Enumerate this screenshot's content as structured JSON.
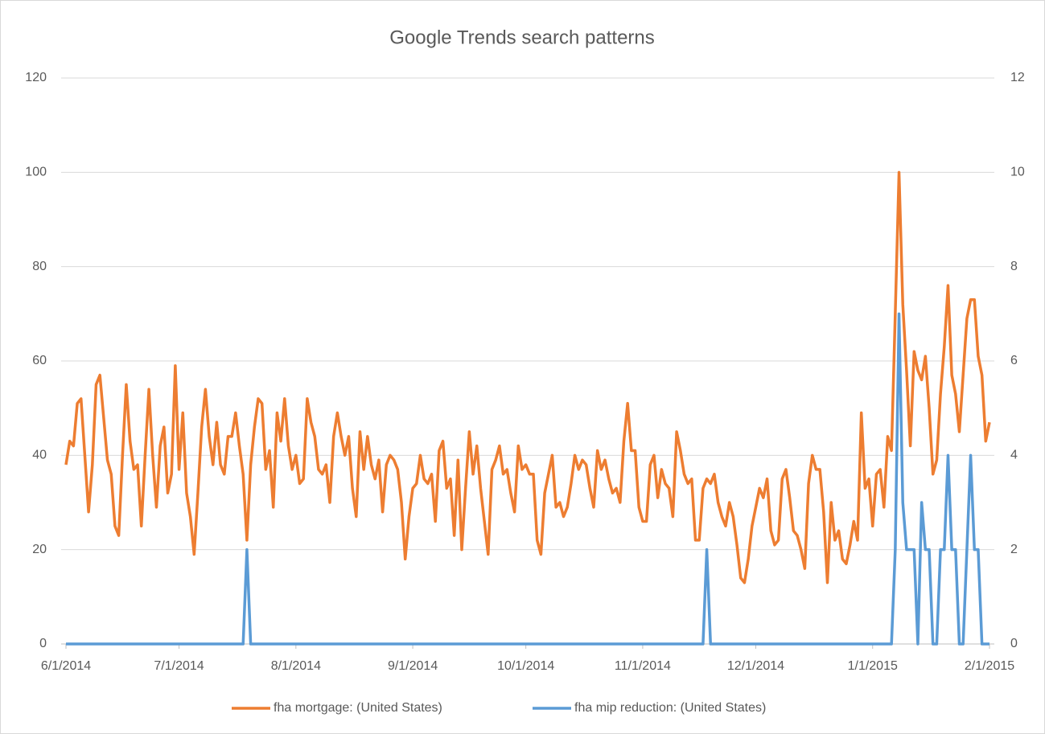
{
  "chart_data": {
    "type": "line",
    "title": "Google Trends search patterns",
    "x": [
      "2014-06-01",
      "2014-06-02",
      "2014-06-03",
      "2014-06-04",
      "2014-06-05",
      "2014-06-06",
      "2014-06-07",
      "2014-06-08",
      "2014-06-09",
      "2014-06-10",
      "2014-06-11",
      "2014-06-12",
      "2014-06-13",
      "2014-06-14",
      "2014-06-15",
      "2014-06-16",
      "2014-06-17",
      "2014-06-18",
      "2014-06-19",
      "2014-06-20",
      "2014-06-21",
      "2014-06-22",
      "2014-06-23",
      "2014-06-24",
      "2014-06-25",
      "2014-06-26",
      "2014-06-27",
      "2014-06-28",
      "2014-06-29",
      "2014-06-30",
      "2014-07-01",
      "2014-07-02",
      "2014-07-03",
      "2014-07-04",
      "2014-07-05",
      "2014-07-06",
      "2014-07-07",
      "2014-07-08",
      "2014-07-09",
      "2014-07-10",
      "2014-07-11",
      "2014-07-12",
      "2014-07-13",
      "2014-07-14",
      "2014-07-15",
      "2014-07-16",
      "2014-07-17",
      "2014-07-18",
      "2014-07-19",
      "2014-07-20",
      "2014-07-21",
      "2014-07-22",
      "2014-07-23",
      "2014-07-24",
      "2014-07-25",
      "2014-07-26",
      "2014-07-27",
      "2014-07-28",
      "2014-07-29",
      "2014-07-30",
      "2014-07-31",
      "2014-08-01",
      "2014-08-02",
      "2014-08-03",
      "2014-08-04",
      "2014-08-05",
      "2014-08-06",
      "2014-08-07",
      "2014-08-08",
      "2014-08-09",
      "2014-08-10",
      "2014-08-11",
      "2014-08-12",
      "2014-08-13",
      "2014-08-14",
      "2014-08-15",
      "2014-08-16",
      "2014-08-17",
      "2014-08-18",
      "2014-08-19",
      "2014-08-20",
      "2014-08-21",
      "2014-08-22",
      "2014-08-23",
      "2014-08-24",
      "2014-08-25",
      "2014-08-26",
      "2014-08-27",
      "2014-08-28",
      "2014-08-29",
      "2014-08-30",
      "2014-08-31",
      "2014-09-01",
      "2014-09-02",
      "2014-09-03",
      "2014-09-04",
      "2014-09-05",
      "2014-09-06",
      "2014-09-07",
      "2014-09-08",
      "2014-09-09",
      "2014-09-10",
      "2014-09-11",
      "2014-09-12",
      "2014-09-13",
      "2014-09-14",
      "2014-09-15",
      "2014-09-16",
      "2014-09-17",
      "2014-09-18",
      "2014-09-19",
      "2014-09-20",
      "2014-09-21",
      "2014-09-22",
      "2014-09-23",
      "2014-09-24",
      "2014-09-25",
      "2014-09-26",
      "2014-09-27",
      "2014-09-28",
      "2014-09-29",
      "2014-09-30",
      "2014-10-01",
      "2014-10-02",
      "2014-10-03",
      "2014-10-04",
      "2014-10-05",
      "2014-10-06",
      "2014-10-07",
      "2014-10-08",
      "2014-10-09",
      "2014-10-10",
      "2014-10-11",
      "2014-10-12",
      "2014-10-13",
      "2014-10-14",
      "2014-10-15",
      "2014-10-16",
      "2014-10-17",
      "2014-10-18",
      "2014-10-19",
      "2014-10-20",
      "2014-10-21",
      "2014-10-22",
      "2014-10-23",
      "2014-10-24",
      "2014-10-25",
      "2014-10-26",
      "2014-10-27",
      "2014-10-28",
      "2014-10-29",
      "2014-10-30",
      "2014-10-31",
      "2014-11-01",
      "2014-11-02",
      "2014-11-03",
      "2014-11-04",
      "2014-11-05",
      "2014-11-06",
      "2014-11-07",
      "2014-11-08",
      "2014-11-09",
      "2014-11-10",
      "2014-11-11",
      "2014-11-12",
      "2014-11-13",
      "2014-11-14",
      "2014-11-15",
      "2014-11-16",
      "2014-11-17",
      "2014-11-18",
      "2014-11-19",
      "2014-11-20",
      "2014-11-21",
      "2014-11-22",
      "2014-11-23",
      "2014-11-24",
      "2014-11-25",
      "2014-11-26",
      "2014-11-27",
      "2014-11-28",
      "2014-11-29",
      "2014-11-30",
      "2014-12-01",
      "2014-12-02",
      "2014-12-03",
      "2014-12-04",
      "2014-12-05",
      "2014-12-06",
      "2014-12-07",
      "2014-12-08",
      "2014-12-09",
      "2014-12-10",
      "2014-12-11",
      "2014-12-12",
      "2014-12-13",
      "2014-12-14",
      "2014-12-15",
      "2014-12-16",
      "2014-12-17",
      "2014-12-18",
      "2014-12-19",
      "2014-12-20",
      "2014-12-21",
      "2014-12-22",
      "2014-12-23",
      "2014-12-24",
      "2014-12-25",
      "2014-12-26",
      "2014-12-27",
      "2014-12-28",
      "2014-12-29",
      "2014-12-30",
      "2014-12-31",
      "2015-01-01",
      "2015-01-02",
      "2015-01-03",
      "2015-01-04",
      "2015-01-05",
      "2015-01-06",
      "2015-01-07",
      "2015-01-08",
      "2015-01-09",
      "2015-01-10",
      "2015-01-11",
      "2015-01-12",
      "2015-01-13",
      "2015-01-14",
      "2015-01-15",
      "2015-01-16",
      "2015-01-17",
      "2015-01-18",
      "2015-01-19",
      "2015-01-20",
      "2015-01-21",
      "2015-01-22",
      "2015-01-23",
      "2015-01-24",
      "2015-01-25",
      "2015-01-26",
      "2015-01-27",
      "2015-01-28",
      "2015-01-29",
      "2015-01-30",
      "2015-01-31",
      "2015-02-01"
    ],
    "series": [
      {
        "name": "fha mortgage: (United States)",
        "color": "#ed7d31",
        "axis": "y",
        "values": [
          38,
          43,
          42,
          51,
          52,
          40,
          28,
          38,
          55,
          57,
          48,
          39,
          36,
          25,
          23,
          40,
          55,
          43,
          37,
          38,
          25,
          40,
          54,
          40,
          29,
          42,
          46,
          32,
          36,
          59,
          37,
          49,
          32,
          27,
          19,
          32,
          46,
          54,
          44,
          38,
          47,
          38,
          36,
          44,
          44,
          49,
          42,
          36,
          22,
          38,
          46,
          52,
          51,
          37,
          41,
          29,
          49,
          43,
          52,
          42,
          37,
          40,
          34,
          35,
          52,
          47,
          44,
          37,
          36,
          38,
          30,
          44,
          49,
          44,
          40,
          44,
          33,
          27,
          45,
          37,
          44,
          38,
          35,
          39,
          28,
          38,
          40,
          39,
          37,
          30,
          18,
          27,
          33,
          34,
          40,
          35,
          34,
          36,
          26,
          41,
          43,
          33,
          35,
          23,
          39,
          20,
          33,
          45,
          36,
          42,
          33,
          26,
          19,
          37,
          39,
          42,
          36,
          37,
          32,
          28,
          42,
          37,
          38,
          36,
          36,
          22,
          19,
          32,
          36,
          40,
          29,
          30,
          27,
          29,
          34,
          40,
          37,
          39,
          38,
          33,
          29,
          41,
          37,
          39,
          35,
          32,
          33,
          30,
          43,
          51,
          41,
          41,
          29,
          26,
          26,
          38,
          40,
          31,
          37,
          34,
          33,
          27,
          45,
          41,
          36,
          34,
          35,
          22,
          22,
          33,
          35,
          34,
          36,
          30,
          27,
          25,
          30,
          27,
          21,
          14,
          13,
          18,
          25,
          29,
          33,
          31,
          35,
          24,
          21,
          22,
          35,
          37,
          31,
          24,
          23,
          20,
          16,
          34,
          40,
          37,
          37,
          28,
          13,
          30,
          22,
          24,
          18,
          17,
          21,
          26,
          22,
          49,
          33,
          35,
          25,
          36,
          37,
          29,
          44,
          41,
          70,
          100,
          72,
          58,
          42,
          62,
          58,
          56,
          61,
          50,
          36,
          39,
          53,
          63,
          76,
          57,
          53,
          45,
          57,
          69,
          73,
          73,
          61,
          57,
          43,
          47
        ]
      },
      {
        "name": "fha mip reduction: (United States)",
        "color": "#5b9bd5",
        "axis": "y2",
        "values": [
          0,
          0,
          0,
          0,
          0,
          0,
          0,
          0,
          0,
          0,
          0,
          0,
          0,
          0,
          0,
          0,
          0,
          0,
          0,
          0,
          0,
          0,
          0,
          0,
          0,
          0,
          0,
          0,
          0,
          0,
          0,
          0,
          0,
          0,
          0,
          0,
          0,
          0,
          0,
          0,
          0,
          0,
          0,
          0,
          0,
          0,
          0,
          0,
          2,
          0,
          0,
          0,
          0,
          0,
          0,
          0,
          0,
          0,
          0,
          0,
          0,
          0,
          0,
          0,
          0,
          0,
          0,
          0,
          0,
          0,
          0,
          0,
          0,
          0,
          0,
          0,
          0,
          0,
          0,
          0,
          0,
          0,
          0,
          0,
          0,
          0,
          0,
          0,
          0,
          0,
          0,
          0,
          0,
          0,
          0,
          0,
          0,
          0,
          0,
          0,
          0,
          0,
          0,
          0,
          0,
          0,
          0,
          0,
          0,
          0,
          0,
          0,
          0,
          0,
          0,
          0,
          0,
          0,
          0,
          0,
          0,
          0,
          0,
          0,
          0,
          0,
          0,
          0,
          0,
          0,
          0,
          0,
          0,
          0,
          0,
          0,
          0,
          0,
          0,
          0,
          0,
          0,
          0,
          0,
          0,
          0,
          0,
          0,
          0,
          0,
          0,
          0,
          0,
          0,
          0,
          0,
          0,
          0,
          0,
          0,
          0,
          0,
          0,
          0,
          0,
          0,
          0,
          0,
          0,
          0,
          2,
          0,
          0,
          0,
          0,
          0,
          0,
          0,
          0,
          0,
          0,
          0,
          0,
          0,
          0,
          0,
          0,
          0,
          0,
          0,
          0,
          0,
          0,
          0,
          0,
          0,
          0,
          0,
          0,
          0,
          0,
          0,
          0,
          0,
          0,
          0,
          0,
          0,
          0,
          0,
          0,
          0,
          0,
          0,
          0,
          0,
          0,
          0,
          0,
          0,
          2,
          7,
          3,
          2,
          2,
          2,
          0,
          3,
          2,
          2,
          0,
          0,
          2,
          2,
          4,
          2,
          2,
          0,
          0,
          2,
          4,
          2,
          2,
          0,
          0,
          0
        ]
      }
    ],
    "xlim": [
      "2014-06-01",
      "2015-02-01"
    ],
    "xticks": [
      {
        "value": "2014-06-01",
        "label": "6/1/2014"
      },
      {
        "value": "2014-07-01",
        "label": "7/1/2014"
      },
      {
        "value": "2014-08-01",
        "label": "8/1/2014"
      },
      {
        "value": "2014-09-01",
        "label": "9/1/2014"
      },
      {
        "value": "2014-10-01",
        "label": "10/1/2014"
      },
      {
        "value": "2014-11-01",
        "label": "11/1/2014"
      },
      {
        "value": "2014-12-01",
        "label": "12/1/2014"
      },
      {
        "value": "2015-01-01",
        "label": "1/1/2015"
      },
      {
        "value": "2015-02-01",
        "label": "2/1/2015"
      }
    ],
    "ylim": [
      0,
      120
    ],
    "yticks": [
      0,
      20,
      40,
      60,
      80,
      100,
      120
    ],
    "y2lim": [
      0,
      12
    ],
    "y2ticks": [
      0,
      2,
      4,
      6,
      8,
      10,
      12
    ],
    "grid": true,
    "legend": "bottom"
  }
}
